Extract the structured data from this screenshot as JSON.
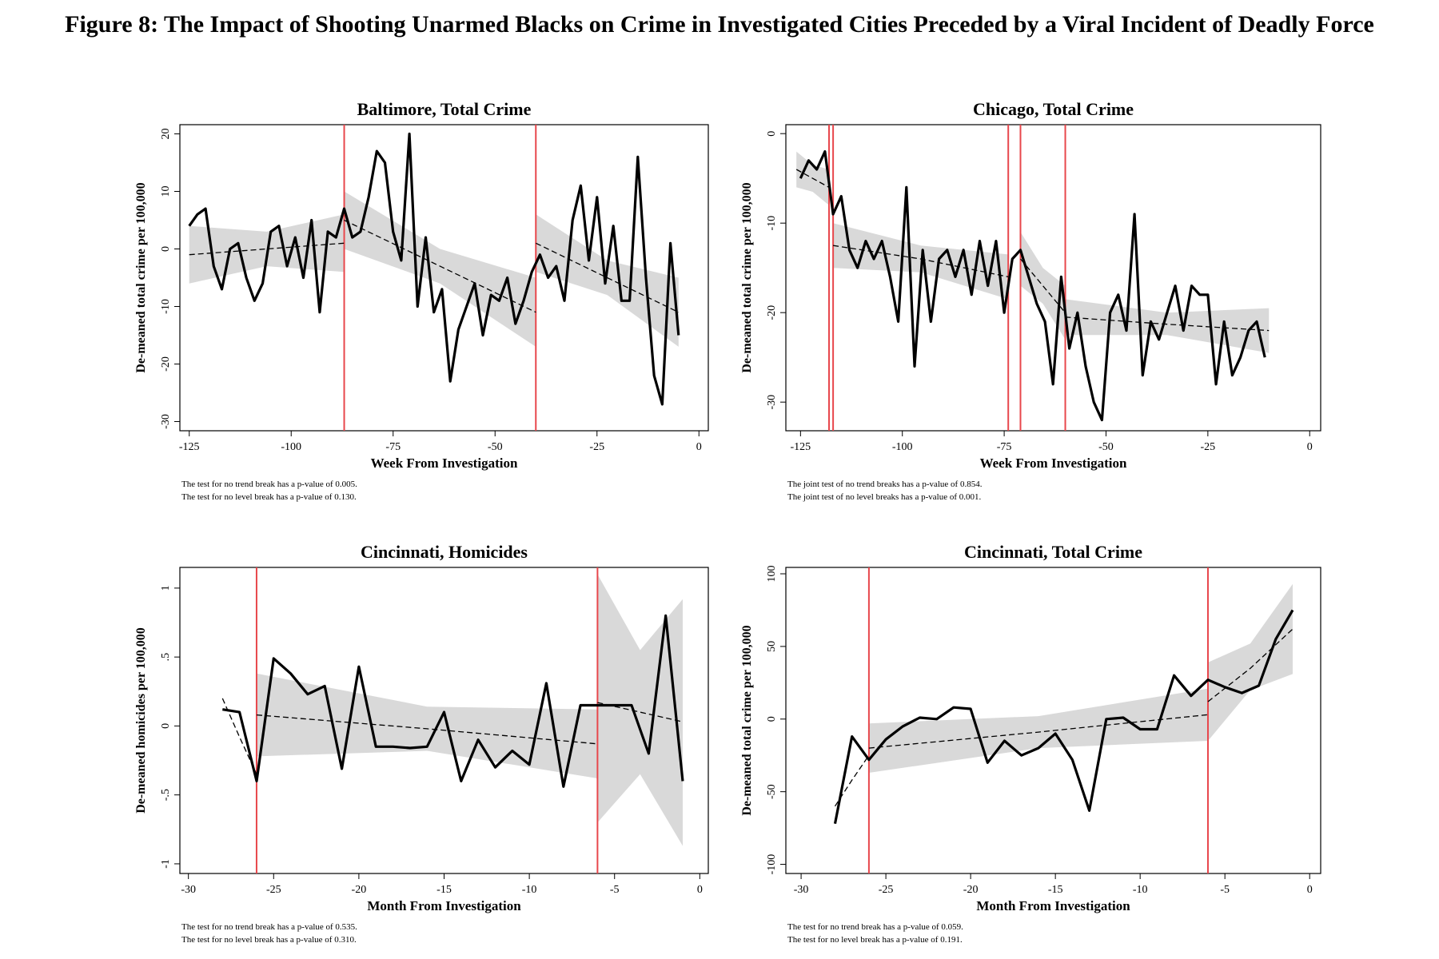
{
  "title": "Figure 8: The Impact of Shooting Unarmed Blacks on Crime in Investigated Cities Preceded by a Viral Incident of Deadly Force",
  "chart_data": [
    {
      "type": "line",
      "title": "Baltimore, Total Crime",
      "xlabel": "Week From Investigation",
      "ylabel": "De-meaned total crime per 100,000",
      "notes": [
        "The test for no trend break has a p-value of 0.005.",
        "The test for no level break has a p-value of 0.130."
      ],
      "xlim": [
        -127.3,
        2.3
      ],
      "xticks": [
        -125,
        -100,
        -75,
        -50,
        -25,
        0
      ],
      "ylim": [
        -31.6,
        21.6
      ],
      "yticks": [
        -30,
        -20,
        -10,
        0,
        10,
        20
      ],
      "color": "#000000",
      "event_color": "#e8474c",
      "band_color": "#d9d9d9",
      "event_lines": [
        -87,
        -40
      ],
      "x": [
        -125,
        -123,
        -121,
        -119,
        -117,
        -115,
        -113,
        -111,
        -109,
        -107,
        -105,
        -103,
        -101,
        -99,
        -97,
        -95,
        -93,
        -91,
        -89,
        -87,
        -85,
        -83,
        -81,
        -79,
        -77,
        -75,
        -73,
        -71,
        -69,
        -67,
        -65,
        -63,
        -61,
        -59,
        -57,
        -55,
        -53,
        -51,
        -49,
        -47,
        -45,
        -43,
        -41,
        -39,
        -37,
        -35,
        -33,
        -31,
        -29,
        -27,
        -25,
        -23,
        -21,
        -19,
        -17,
        -15,
        -13,
        -11,
        -9,
        -7,
        -5
      ],
      "values": [
        4,
        6,
        7,
        -3,
        -7,
        0,
        1,
        -5,
        -9,
        -6,
        3,
        4,
        -3,
        2,
        -5,
        5,
        -11,
        3,
        2,
        7,
        2,
        3,
        9,
        17,
        15,
        3,
        -2,
        20,
        -10,
        2,
        -11,
        -7,
        -23,
        -14,
        -10,
        -6,
        -15,
        -8,
        -9,
        -5,
        -13,
        -9,
        -4,
        -1,
        -5,
        -3,
        -9,
        5,
        11,
        -2,
        9,
        -6,
        4,
        -9,
        -9,
        16,
        -5,
        -22,
        -27,
        1,
        -15
      ],
      "fits": [
        {
          "x": [
            -125,
            -106,
            -87
          ],
          "values": [
            -1,
            0,
            1
          ],
          "lower": [
            -6,
            -3,
            -4
          ],
          "upper": [
            4,
            3,
            6
          ]
        },
        {
          "x": [
            -87,
            -63.5,
            -40
          ],
          "values": [
            5,
            -3,
            -11
          ],
          "lower": [
            0,
            -6,
            -17
          ],
          "upper": [
            10,
            0,
            -5
          ]
        },
        {
          "x": [
            -40,
            -22.5,
            -5
          ],
          "values": [
            1,
            -5,
            -11
          ],
          "lower": [
            -4,
            -8,
            -17
          ],
          "upper": [
            6,
            -2,
            -5
          ]
        }
      ]
    },
    {
      "type": "line",
      "title": "Chicago, Total Crime",
      "xlabel": "Week From Investigation",
      "ylabel": "De-meaned total crime per 100,000",
      "notes": [
        "The joint test of no trend breaks has a p-value of 0.854.",
        "The joint test of no level breaks has a p-value of 0.001."
      ],
      "xlim": [
        -128.6,
        2.7
      ],
      "xticks": [
        -125,
        -100,
        -75,
        -50,
        -25,
        0
      ],
      "ylim": [
        -33.2,
        1
      ],
      "yticks": [
        -30,
        -20,
        -10,
        0
      ],
      "color": "#000000",
      "event_color": "#e8474c",
      "band_color": "#d9d9d9",
      "event_lines": [
        -118,
        -117,
        -74,
        -71,
        -60
      ],
      "x": [
        -125,
        -123,
        -121,
        -119,
        -117,
        -115,
        -113,
        -111,
        -109,
        -107,
        -105,
        -103,
        -101,
        -99,
        -97,
        -95,
        -93,
        -91,
        -89,
        -87,
        -85,
        -83,
        -81,
        -79,
        -77,
        -75,
        -73,
        -71,
        -69,
        -67,
        -65,
        -63,
        -61,
        -59,
        -57,
        -55,
        -53,
        -51,
        -49,
        -47,
        -45,
        -43,
        -41,
        -39,
        -37,
        -35,
        -33,
        -31,
        -29,
        -27,
        -25,
        -23,
        -21,
        -19,
        -17,
        -15,
        -13,
        -11
      ],
      "values": [
        -5,
        -3,
        -4,
        -2,
        -9,
        -7,
        -13,
        -15,
        -12,
        -14,
        -12,
        -16,
        -21,
        -6,
        -26,
        -13,
        -21,
        -14,
        -13,
        -16,
        -13,
        -18,
        -12,
        -17,
        -12,
        -20,
        -14,
        -13,
        -16,
        -19,
        -21,
        -28,
        -16,
        -24,
        -20,
        -26,
        -30,
        -32,
        -20,
        -18,
        -22,
        -9,
        -27,
        -21,
        -23,
        -20,
        -17,
        -22,
        -17,
        -18,
        -18,
        -28,
        -21,
        -27,
        -25,
        -22,
        -21,
        -25
      ],
      "fits": [
        {
          "x": [
            -126,
            -122,
            -118
          ],
          "values": [
            -4,
            -5,
            -6
          ],
          "lower": [
            -6,
            -6.5,
            -8
          ],
          "upper": [
            -2,
            -3.5,
            -4
          ]
        },
        {
          "x": [
            -117,
            -95.5,
            -74
          ],
          "values": [
            -12.5,
            -14,
            -16
          ],
          "lower": [
            -15,
            -15.5,
            -18.5
          ],
          "upper": [
            -10,
            -12.5,
            -13.5
          ]
        },
        {
          "x": [
            -71,
            -65.5,
            -60
          ],
          "values": [
            -14,
            -17,
            -20
          ],
          "lower": [
            -17,
            -19,
            -23
          ],
          "upper": [
            -11,
            -15,
            -17
          ]
        },
        {
          "x": [
            -60,
            -35,
            -10
          ],
          "values": [
            -20.5,
            -21.3,
            -22
          ],
          "lower": [
            -22.5,
            -22.5,
            -24.5
          ],
          "upper": [
            -18.5,
            -20,
            -19.5
          ]
        }
      ]
    },
    {
      "type": "line",
      "title": "Cincinnati, Homicides",
      "xlabel": "Month From Investigation",
      "ylabel": "De-meaned homicides per 100,000",
      "notes": [
        "The test for no trend break has a p-value of 0.535.",
        "The test for no level break has a p-value of 0.310."
      ],
      "xlim": [
        -30.5,
        0.5
      ],
      "xticks": [
        -30,
        -25,
        -20,
        -15,
        -10,
        -5,
        0
      ],
      "ylim": [
        -1.07,
        1.15
      ],
      "yticks": [
        {
          "value": -1,
          "label": "-1"
        },
        {
          "value": -0.5,
          "label": "-.5"
        },
        0,
        {
          "value": 0.5,
          "label": ".5"
        },
        1
      ],
      "color": "#000000",
      "event_color": "#e8474c",
      "band_color": "#d9d9d9",
      "event_lines": [
        -26,
        -6
      ],
      "x": [
        -28,
        -27,
        -26,
        -25,
        -24,
        -23,
        -22,
        -21,
        -20,
        -19,
        -18,
        -17,
        -16,
        -15,
        -14,
        -13,
        -12,
        -11,
        -10,
        -9,
        -8,
        -7,
        -6,
        -5,
        -4,
        -3,
        -2,
        -1
      ],
      "values": [
        0.12,
        0.1,
        -0.4,
        0.49,
        0.38,
        0.23,
        0.29,
        -0.31,
        0.43,
        -0.15,
        -0.15,
        -0.16,
        -0.15,
        0.1,
        -0.4,
        -0.1,
        -0.3,
        -0.18,
        -0.28,
        0.31,
        -0.44,
        0.15,
        0.15,
        0.15,
        0.15,
        -0.2,
        0.8,
        -0.4
      ],
      "fits": [
        {
          "x": [
            -28,
            -27,
            -26
          ],
          "values": [
            0.2,
            -0.08,
            -0.35
          ],
          "lower": [
            0.2,
            -0.08,
            -0.35
          ],
          "upper": [
            0.2,
            -0.08,
            -0.35
          ]
        },
        {
          "x": [
            -26,
            -16,
            -6
          ],
          "values": [
            0.08,
            -0.02,
            -0.13
          ],
          "lower": [
            -0.22,
            -0.18,
            -0.38
          ],
          "upper": [
            0.38,
            0.14,
            0.12
          ]
        },
        {
          "x": [
            -6,
            -3.5,
            -1
          ],
          "values": [
            0.17,
            0.1,
            0.03
          ],
          "lower": [
            -0.7,
            -0.35,
            -0.87
          ],
          "upper": [
            1.1,
            0.55,
            0.92
          ]
        }
      ]
    },
    {
      "type": "line",
      "title": "Cincinnati, Total Crime",
      "xlabel": "Month From Investigation",
      "ylabel": "De-meaned total crime per 100,000",
      "notes": [
        "The test for no trend break has a p-value of 0.059.",
        "The test for no level break has a p-value of 0.191."
      ],
      "xlim": [
        -30.9,
        0.65
      ],
      "xticks": [
        -30,
        -25,
        -20,
        -15,
        -10,
        -5,
        0
      ],
      "ylim": [
        -106.3,
        104.4
      ],
      "yticks": [
        -100,
        -50,
        0,
        50,
        100
      ],
      "color": "#000000",
      "event_color": "#e8474c",
      "band_color": "#d9d9d9",
      "event_lines": [
        -26,
        -6
      ],
      "x": [
        -28,
        -27,
        -26,
        -25,
        -24,
        -23,
        -22,
        -21,
        -20,
        -19,
        -18,
        -17,
        -16,
        -15,
        -14,
        -13,
        -12,
        -11,
        -10,
        -9,
        -8,
        -7,
        -6,
        -5,
        -4,
        -3,
        -2,
        -1
      ],
      "values": [
        -72,
        -12,
        -28,
        -14,
        -5,
        1,
        0,
        8,
        7,
        -30,
        -15,
        -25,
        -20,
        -10,
        -28,
        -63,
        0,
        1,
        -7,
        -7,
        30,
        16,
        27,
        22,
        18,
        23,
        55,
        75
      ],
      "fits": [
        {
          "x": [
            -28,
            -27,
            -26
          ],
          "values": [
            -60,
            -42,
            -25
          ],
          "lower": [
            -60,
            -42,
            -25
          ],
          "upper": [
            -60,
            -42,
            -25
          ]
        },
        {
          "x": [
            -26,
            -16,
            -6
          ],
          "values": [
            -20,
            -9,
            3
          ],
          "lower": [
            -37,
            -20,
            -15
          ],
          "upper": [
            -3,
            2,
            21
          ]
        },
        {
          "x": [
            -6,
            -3.5,
            -1
          ],
          "values": [
            12,
            35,
            62
          ],
          "lower": [
            -15,
            20,
            31
          ],
          "upper": [
            39,
            52,
            93
          ]
        }
      ]
    }
  ]
}
